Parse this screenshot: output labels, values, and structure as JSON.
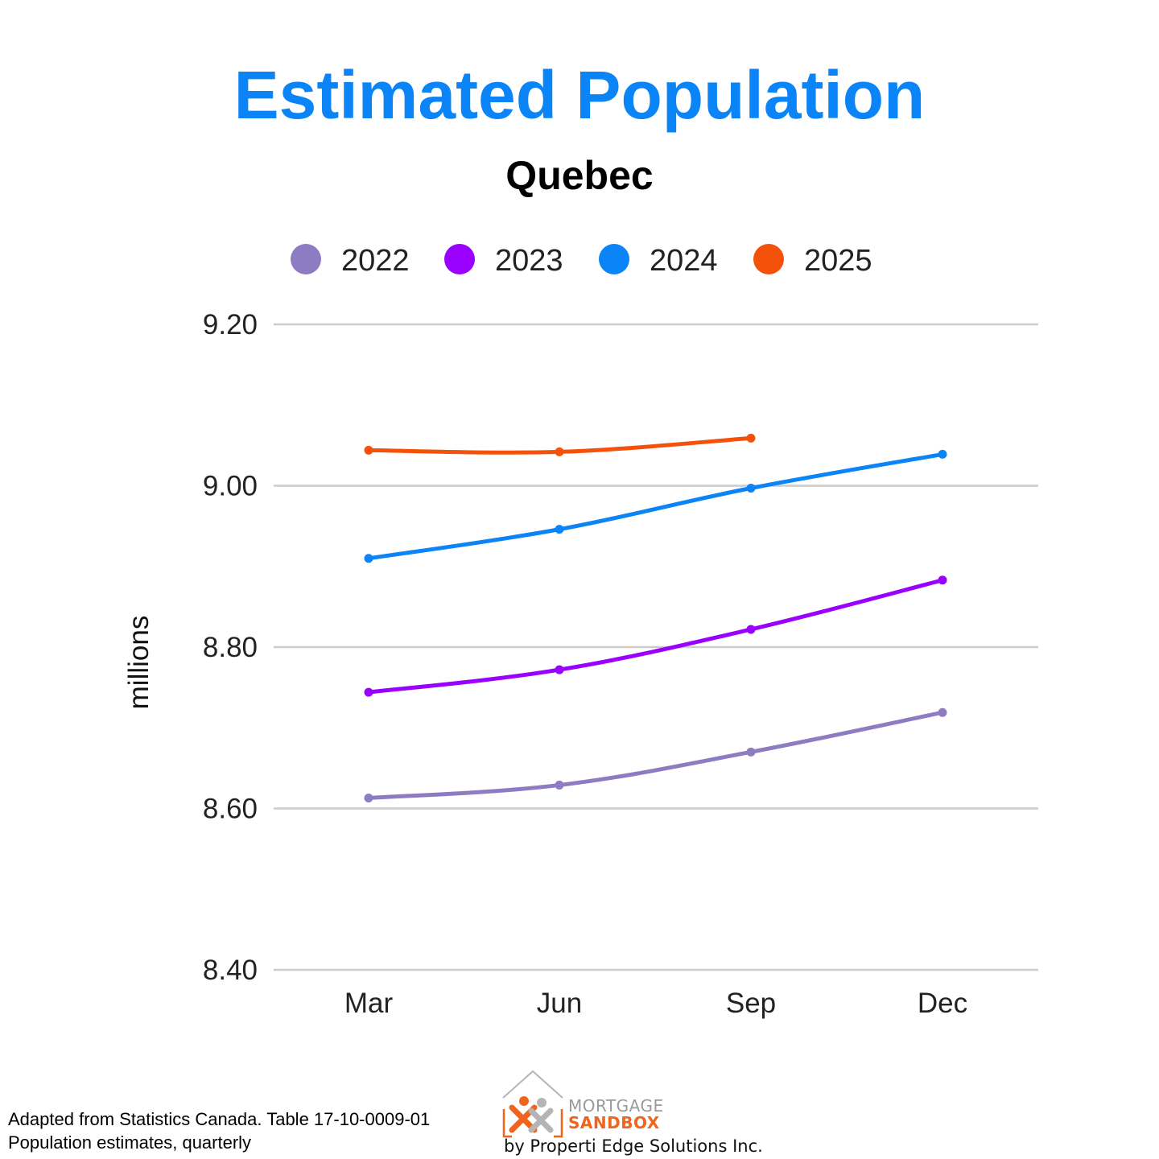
{
  "chart_data": {
    "type": "line",
    "title": "Estimated Population",
    "subtitle": "Quebec",
    "ylabel": "millions",
    "xlabel": "",
    "categories": [
      "Mar",
      "Jun",
      "Sep",
      "Dec"
    ],
    "ylim": [
      8.4,
      9.2
    ],
    "yticks": [
      "9.20",
      "9.00",
      "8.80",
      "8.60",
      "8.40"
    ],
    "ytick_values": [
      9.2,
      9.0,
      8.8,
      8.6,
      8.4
    ],
    "grid": true,
    "legend_position": "top-center",
    "series": [
      {
        "name": "2022",
        "color": "#8e7cc3",
        "values": [
          8.613,
          8.629,
          8.67,
          8.719
        ]
      },
      {
        "name": "2023",
        "color": "#9900ff",
        "values": [
          8.744,
          8.772,
          8.822,
          8.883
        ]
      },
      {
        "name": "2024",
        "color": "#0a84f6",
        "values": [
          8.91,
          8.946,
          8.997,
          9.039
        ]
      },
      {
        "name": "2025",
        "color": "#f4520b",
        "values": [
          9.044,
          9.042,
          9.059,
          null
        ]
      }
    ]
  },
  "footer": {
    "source_line1": "Adapted from Statistics Canada. Table 17-10-0009-01",
    "source_line2": "Population estimates, quarterly"
  },
  "brand": {
    "word1": "MORTGAGE",
    "word2": "SANDBOX",
    "byline": "by Properti Edge Solutions Inc."
  }
}
